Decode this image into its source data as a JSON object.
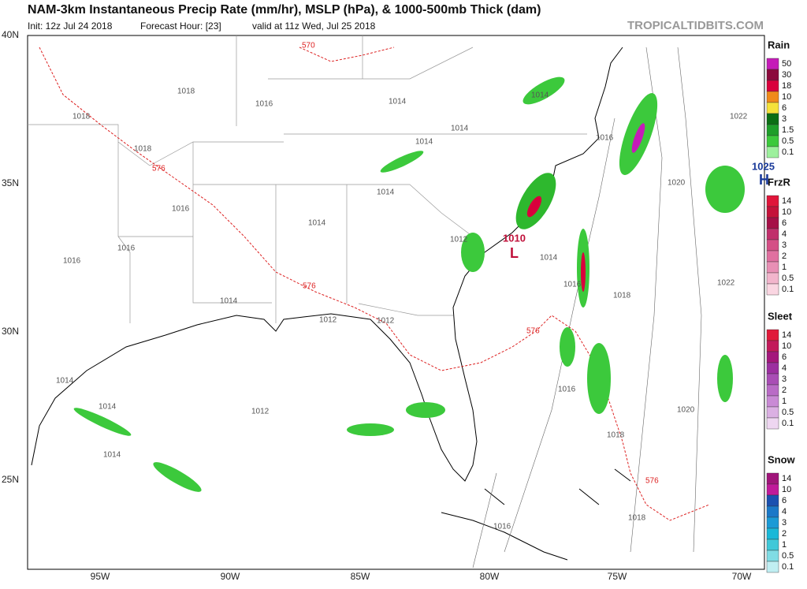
{
  "header": {
    "title": "NAM-3km Instantaneous Precip Rate (mm/hr), MSLP (hPa), & 1000-500mb Thick (dam)",
    "init": "Init: 12z Jul 24 2018",
    "forecast_hour": "Forecast Hour: [23]",
    "valid": "valid at 11z Wed, Jul 25 2018",
    "source": "TROPICALTIDBITS.COM"
  },
  "map": {
    "lat_labels": [
      "40N",
      "35N",
      "30N",
      "25N"
    ],
    "lon_labels": [
      "95W",
      "90W",
      "85W",
      "80W",
      "75W",
      "70W"
    ],
    "isobar_labels": [
      "1018",
      "1018",
      "1018",
      "1016",
      "1016",
      "1016",
      "1016",
      "1014",
      "1014",
      "1014",
      "1014",
      "1014",
      "1014",
      "1014",
      "1012",
      "1012",
      "1012",
      "1014",
      "1016",
      "1018",
      "1016",
      "1020",
      "1022",
      "1022",
      "1020",
      "1018",
      "1018",
      "1016",
      "1014",
      "1014",
      "1014",
      "1012",
      "1016",
      "1025",
      "1010"
    ],
    "thickness_labels": [
      "570",
      "576",
      "576",
      "576",
      "576"
    ],
    "high_label": "H",
    "low_label": "L"
  },
  "legends": [
    {
      "title": "Rain",
      "labels": [
        "50",
        "30",
        "18",
        "10",
        "6",
        "3",
        "1.5",
        "0.5",
        "0.1"
      ],
      "colors": [
        "#c51bb8",
        "#8b0a3c",
        "#d9003c",
        "#f08a1a",
        "#f5e23a",
        "#0b6e14",
        "#1e9e2a",
        "#3cc93c",
        "#9df09d"
      ]
    },
    {
      "title": "FrzR",
      "labels": [
        "14",
        "10",
        "6",
        "4",
        "3",
        "2",
        "1",
        "0.5",
        "0.1"
      ],
      "colors": [
        "#e0153a",
        "#c4123a",
        "#a50f47",
        "#c02f6b",
        "#d44f86",
        "#e070a0",
        "#e890b5",
        "#f2b5cc",
        "#fad6e2"
      ]
    },
    {
      "title": "Sleet",
      "labels": [
        "14",
        "10",
        "6",
        "4",
        "3",
        "2",
        "1",
        "0.5",
        "0.1"
      ],
      "colors": [
        "#e01a3a",
        "#c21a5a",
        "#a4177c",
        "#9c2fa0",
        "#a94db5",
        "#b96bc6",
        "#c98ad5",
        "#dbb0e3",
        "#eed6f1"
      ]
    },
    {
      "title": "Snow",
      "labels": [
        "14",
        "10",
        "6",
        "4",
        "3",
        "2",
        "1",
        "0.5",
        "0.1"
      ],
      "colors": [
        "#a0157a",
        "#c01a9a",
        "#1a50b0",
        "#1a78c8",
        "#1a9ad6",
        "#1ab8d8",
        "#40c8d8",
        "#80dce4",
        "#c0eef2"
      ]
    }
  ]
}
